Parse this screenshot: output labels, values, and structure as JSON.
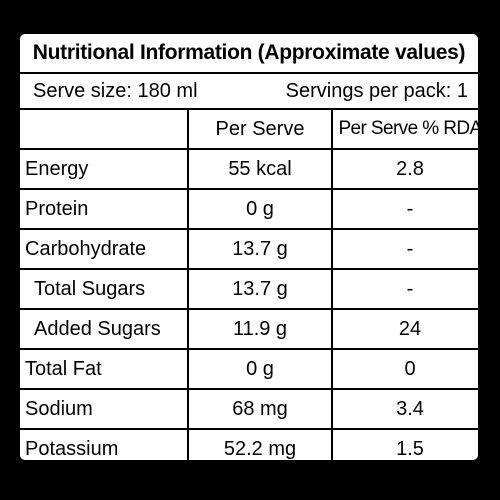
{
  "title": "Nutritional Information (Approximate values)",
  "serve_size": "Serve size: 180 ml",
  "servings_per_pack": "Servings per pack: 1",
  "columns": {
    "nutrient": "",
    "per_serve": "Per Serve",
    "rda": "Per Serve % RDA"
  },
  "rows": [
    {
      "nutrient": "Energy",
      "per_serve": "55 kcal",
      "rda": "2.8"
    },
    {
      "nutrient": "Protein",
      "per_serve": "0 g",
      "rda": "-"
    },
    {
      "nutrient": "Carbohydrate",
      "per_serve": "13.7 g",
      "rda": "-"
    },
    {
      "nutrient": "Total Sugars",
      "per_serve": "13.7 g",
      "rda": "-"
    },
    {
      "nutrient": "Added Sugars",
      "per_serve": "11.9 g",
      "rda": "24"
    },
    {
      "nutrient": "Total Fat",
      "per_serve": "0 g",
      "rda": "0"
    },
    {
      "nutrient": "Sodium",
      "per_serve": "68 mg",
      "rda": "3.4"
    },
    {
      "nutrient": "Potassium",
      "per_serve": "52.2 mg",
      "rda": "1.5"
    }
  ]
}
